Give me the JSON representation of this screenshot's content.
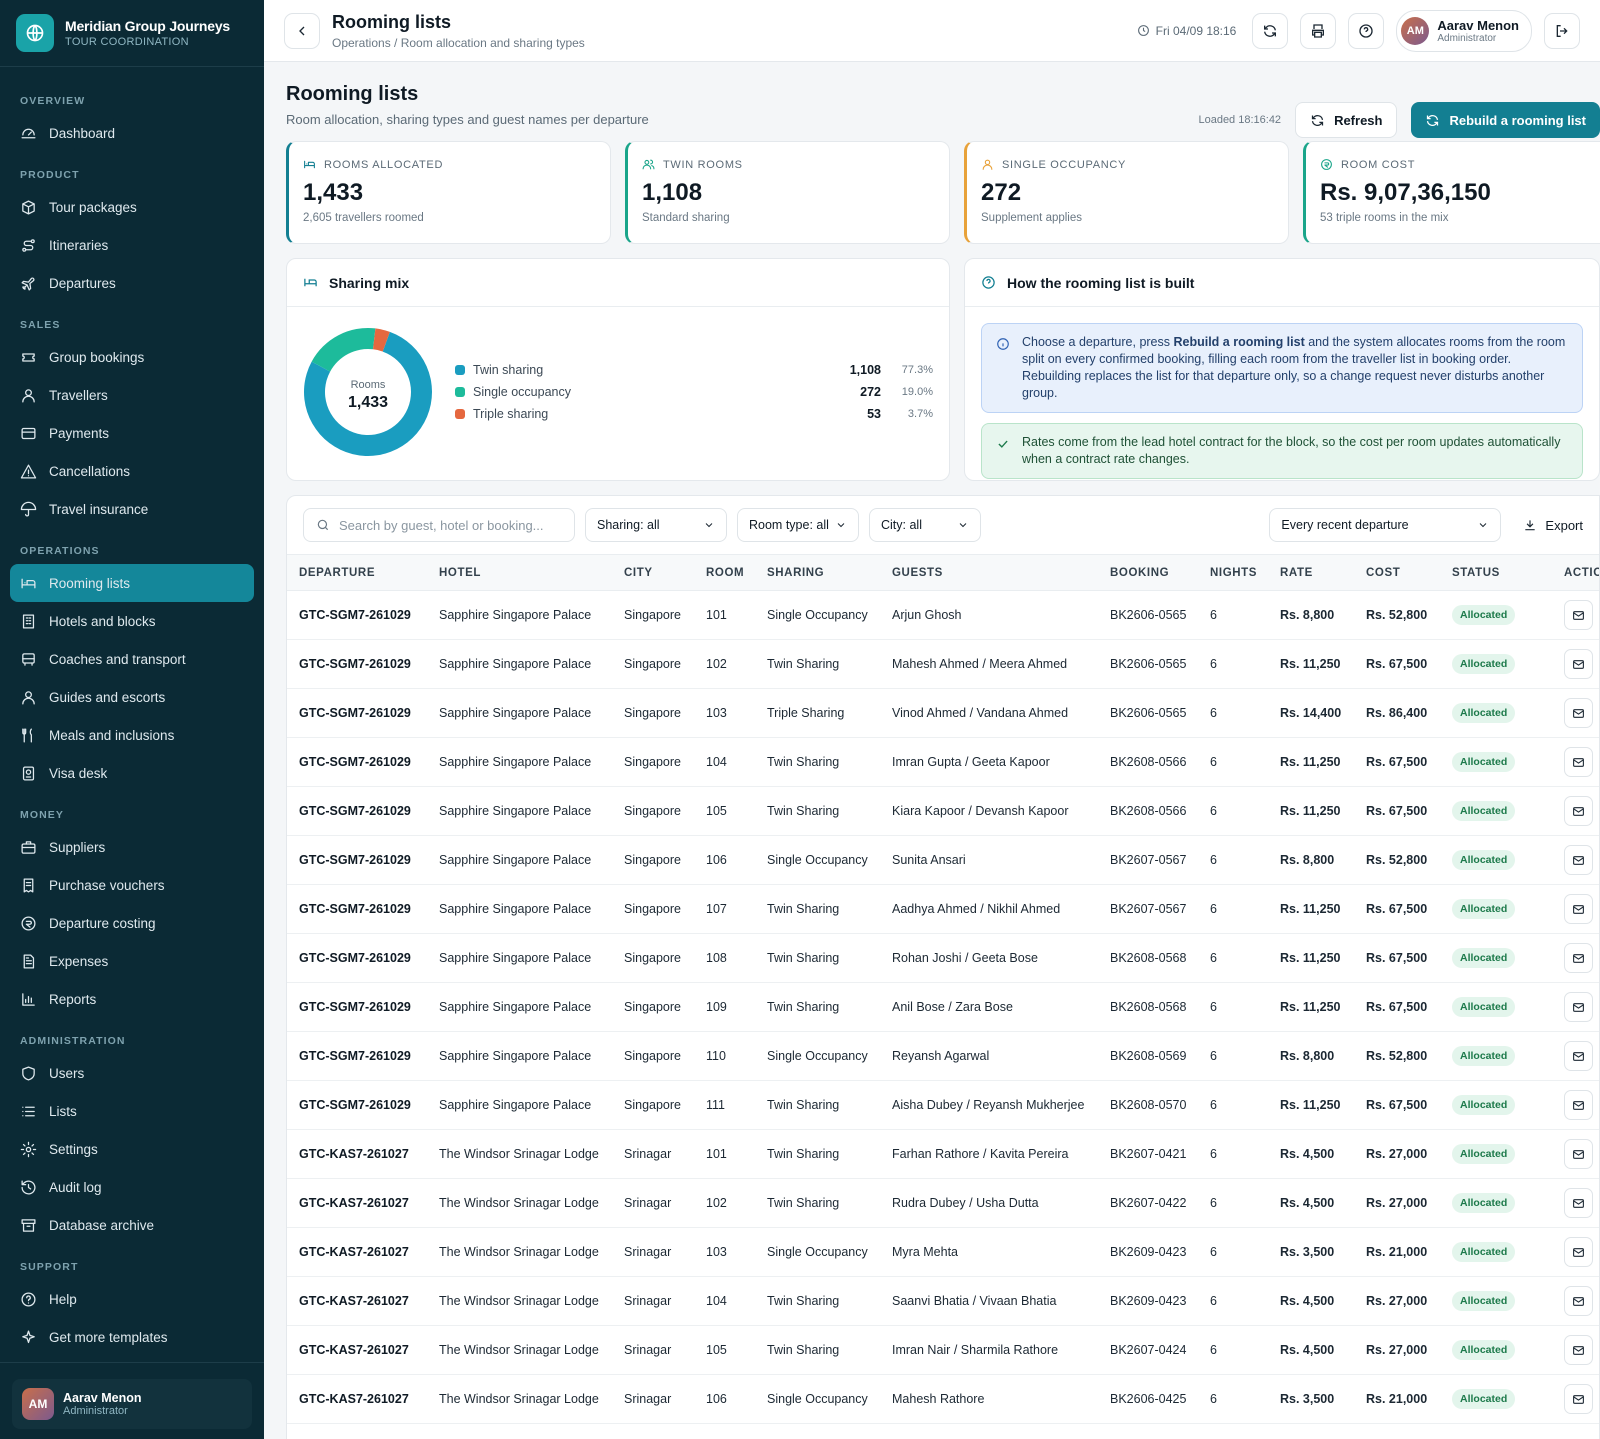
{
  "brand": {
    "name": "Meridian Group Journeys",
    "subtitle": "TOUR COORDINATION"
  },
  "sidebar": {
    "sections": [
      {
        "title": "OVERVIEW",
        "items": [
          {
            "label": "Dashboard",
            "icon": "dashboard-icon"
          }
        ]
      },
      {
        "title": "PRODUCT",
        "items": [
          {
            "label": "Tour packages",
            "icon": "package-icon"
          },
          {
            "label": "Itineraries",
            "icon": "route-icon"
          },
          {
            "label": "Departures",
            "icon": "plane-icon"
          }
        ]
      },
      {
        "title": "SALES",
        "items": [
          {
            "label": "Group bookings",
            "icon": "ticket-icon"
          },
          {
            "label": "Travellers",
            "icon": "user-icon"
          },
          {
            "label": "Payments",
            "icon": "card-icon"
          },
          {
            "label": "Cancellations",
            "icon": "warning-icon"
          },
          {
            "label": "Travel insurance",
            "icon": "umbrella-icon"
          }
        ]
      },
      {
        "title": "OPERATIONS",
        "items": [
          {
            "label": "Rooming lists",
            "icon": "bed-icon",
            "active": true
          },
          {
            "label": "Hotels and blocks",
            "icon": "building-icon"
          },
          {
            "label": "Coaches and transport",
            "icon": "bus-icon"
          },
          {
            "label": "Guides and escorts",
            "icon": "user-icon"
          },
          {
            "label": "Meals and inclusions",
            "icon": "utensils-icon"
          },
          {
            "label": "Visa desk",
            "icon": "passport-icon"
          }
        ]
      },
      {
        "title": "MONEY",
        "items": [
          {
            "label": "Suppliers",
            "icon": "briefcase-icon"
          },
          {
            "label": "Purchase vouchers",
            "icon": "receipt-icon"
          },
          {
            "label": "Departure costing",
            "icon": "coin-icon"
          },
          {
            "label": "Expenses",
            "icon": "document-icon"
          },
          {
            "label": "Reports",
            "icon": "chart-icon"
          }
        ]
      },
      {
        "title": "ADMINISTRATION",
        "items": [
          {
            "label": "Users",
            "icon": "shield-icon"
          },
          {
            "label": "Lists",
            "icon": "list-icon"
          },
          {
            "label": "Settings",
            "icon": "gear-icon"
          },
          {
            "label": "Audit log",
            "icon": "history-icon"
          },
          {
            "label": "Database archive",
            "icon": "archive-icon"
          }
        ]
      },
      {
        "title": "SUPPORT",
        "items": [
          {
            "label": "Help",
            "icon": "help-icon"
          },
          {
            "label": "Get more templates",
            "icon": "sparkle-icon"
          }
        ]
      }
    ],
    "user": {
      "initials": "AM",
      "name": "Aarav Menon",
      "role": "Administrator"
    }
  },
  "topbar": {
    "title": "Rooming lists",
    "crumb": "Operations / Room allocation and sharing types",
    "datetime": "Fri 04/09 18:16",
    "user": {
      "initials": "AM",
      "name": "Aarav Menon",
      "role": "Administrator"
    }
  },
  "page": {
    "title": "Rooming lists",
    "subtitle": "Room allocation, sharing types and guest names per departure",
    "loaded": "Loaded 18:16:42",
    "refresh": "Refresh",
    "rebuild": "Rebuild a rooming list"
  },
  "kpis": [
    {
      "label": "ROOMS ALLOCATED",
      "value": "1,433",
      "sub": "2,605 travellers roomed",
      "color": "#137f92",
      "icon": "bed-icon"
    },
    {
      "label": "TWIN ROOMS",
      "value": "1,108",
      "sub": "Standard sharing",
      "color": "#1aa58a",
      "icon": "users-icon"
    },
    {
      "label": "SINGLE OCCUPANCY",
      "value": "272",
      "sub": "Supplement applies",
      "color": "#e8a23a",
      "icon": "user-icon"
    },
    {
      "label": "ROOM COST",
      "value": "Rs. 9,07,36,150",
      "sub": "53 triple rooms in the mix",
      "color": "#1aa58a",
      "icon": "coin-icon"
    }
  ],
  "mix": {
    "title": "Sharing mix",
    "center_label": "Rooms",
    "center_value": "1,433"
  },
  "chart_data": {
    "type": "pie",
    "categories": [
      "Twin sharing",
      "Single occupancy",
      "Triple sharing"
    ],
    "values": [
      1108,
      272,
      53
    ],
    "percents": [
      "77.3%",
      "19.0%",
      "3.7%"
    ],
    "value_labels": [
      "1,108",
      "272",
      "53"
    ],
    "colors": [
      "#1a9dc0",
      "#1dbb9b",
      "#e5683f"
    ]
  },
  "how": {
    "title": "How the rooming list is built",
    "info_pre": "Choose a departure, press ",
    "info_bold": "Rebuild a rooming list",
    "info_post": " and the system allocates rooms from the room split on every confirmed booking, filling each room from the traveller list in booking order. Rebuilding replaces the list for that departure only, so a change request never disturbs another group.",
    "ok": "Rates come from the lead hotel contract for the block, so the cost per room updates automatically when a contract rate changes."
  },
  "filters": {
    "search_placeholder": "Search by guest, hotel or booking...",
    "sharing": "Sharing: all",
    "room_type": "Room type: all",
    "city": "City: all",
    "departure": "Every recent departure",
    "export": "Export"
  },
  "columns": [
    "DEPARTURE",
    "HOTEL",
    "CITY",
    "ROOM",
    "SHARING",
    "GUESTS",
    "BOOKING",
    "NIGHTS",
    "RATE",
    "COST",
    "STATUS",
    "ACTIONS"
  ],
  "rows": [
    [
      "GTC-SGM7-261029",
      "Sapphire Singapore Palace",
      "Singapore",
      "101",
      "Single Occupancy",
      "Arjun Ghosh",
      "BK2606-0565",
      "6",
      "Rs. 8,800",
      "Rs. 52,800",
      "Allocated"
    ],
    [
      "GTC-SGM7-261029",
      "Sapphire Singapore Palace",
      "Singapore",
      "102",
      "Twin Sharing",
      "Mahesh Ahmed / Meera Ahmed",
      "BK2606-0565",
      "6",
      "Rs. 11,250",
      "Rs. 67,500",
      "Allocated"
    ],
    [
      "GTC-SGM7-261029",
      "Sapphire Singapore Palace",
      "Singapore",
      "103",
      "Triple Sharing",
      "Vinod Ahmed / Vandana Ahmed",
      "BK2606-0565",
      "6",
      "Rs. 14,400",
      "Rs. 86,400",
      "Allocated"
    ],
    [
      "GTC-SGM7-261029",
      "Sapphire Singapore Palace",
      "Singapore",
      "104",
      "Twin Sharing",
      "Imran Gupta / Geeta Kapoor",
      "BK2608-0566",
      "6",
      "Rs. 11,250",
      "Rs. 67,500",
      "Allocated"
    ],
    [
      "GTC-SGM7-261029",
      "Sapphire Singapore Palace",
      "Singapore",
      "105",
      "Twin Sharing",
      "Kiara Kapoor / Devansh Kapoor",
      "BK2608-0566",
      "6",
      "Rs. 11,250",
      "Rs. 67,500",
      "Allocated"
    ],
    [
      "GTC-SGM7-261029",
      "Sapphire Singapore Palace",
      "Singapore",
      "106",
      "Single Occupancy",
      "Sunita Ansari",
      "BK2607-0567",
      "6",
      "Rs. 8,800",
      "Rs. 52,800",
      "Allocated"
    ],
    [
      "GTC-SGM7-261029",
      "Sapphire Singapore Palace",
      "Singapore",
      "107",
      "Twin Sharing",
      "Aadhya Ahmed / Nikhil Ahmed",
      "BK2607-0567",
      "6",
      "Rs. 11,250",
      "Rs. 67,500",
      "Allocated"
    ],
    [
      "GTC-SGM7-261029",
      "Sapphire Singapore Palace",
      "Singapore",
      "108",
      "Twin Sharing",
      "Rohan Joshi / Geeta Bose",
      "BK2608-0568",
      "6",
      "Rs. 11,250",
      "Rs. 67,500",
      "Allocated"
    ],
    [
      "GTC-SGM7-261029",
      "Sapphire Singapore Palace",
      "Singapore",
      "109",
      "Twin Sharing",
      "Anil Bose / Zara Bose",
      "BK2608-0568",
      "6",
      "Rs. 11,250",
      "Rs. 67,500",
      "Allocated"
    ],
    [
      "GTC-SGM7-261029",
      "Sapphire Singapore Palace",
      "Singapore",
      "110",
      "Single Occupancy",
      "Reyansh Agarwal",
      "BK2608-0569",
      "6",
      "Rs. 8,800",
      "Rs. 52,800",
      "Allocated"
    ],
    [
      "GTC-SGM7-261029",
      "Sapphire Singapore Palace",
      "Singapore",
      "111",
      "Twin Sharing",
      "Aisha Dubey / Reyansh Mukherjee",
      "BK2608-0570",
      "6",
      "Rs. 11,250",
      "Rs. 67,500",
      "Allocated"
    ],
    [
      "GTC-KAS7-261027",
      "The Windsor Srinagar Lodge",
      "Srinagar",
      "101",
      "Twin Sharing",
      "Farhan Rathore / Kavita Pereira",
      "BK2607-0421",
      "6",
      "Rs. 4,500",
      "Rs. 27,000",
      "Allocated"
    ],
    [
      "GTC-KAS7-261027",
      "The Windsor Srinagar Lodge",
      "Srinagar",
      "102",
      "Twin Sharing",
      "Rudra Dubey / Usha Dutta",
      "BK2607-0422",
      "6",
      "Rs. 4,500",
      "Rs. 27,000",
      "Allocated"
    ],
    [
      "GTC-KAS7-261027",
      "The Windsor Srinagar Lodge",
      "Srinagar",
      "103",
      "Single Occupancy",
      "Myra Mehta",
      "BK2609-0423",
      "6",
      "Rs. 3,500",
      "Rs. 21,000",
      "Allocated"
    ],
    [
      "GTC-KAS7-261027",
      "The Windsor Srinagar Lodge",
      "Srinagar",
      "104",
      "Twin Sharing",
      "Saanvi Bhatia / Vivaan Bhatia",
      "BK2609-0423",
      "6",
      "Rs. 4,500",
      "Rs. 27,000",
      "Allocated"
    ],
    [
      "GTC-KAS7-261027",
      "The Windsor Srinagar Lodge",
      "Srinagar",
      "105",
      "Twin Sharing",
      "Imran Nair / Sharmila Rathore",
      "BK2607-0424",
      "6",
      "Rs. 4,500",
      "Rs. 27,000",
      "Allocated"
    ],
    [
      "GTC-KAS7-261027",
      "The Windsor Srinagar Lodge",
      "Srinagar",
      "106",
      "Single Occupancy",
      "Mahesh Rathore",
      "BK2606-0425",
      "6",
      "Rs. 3,500",
      "Rs. 21,000",
      "Allocated"
    ]
  ]
}
